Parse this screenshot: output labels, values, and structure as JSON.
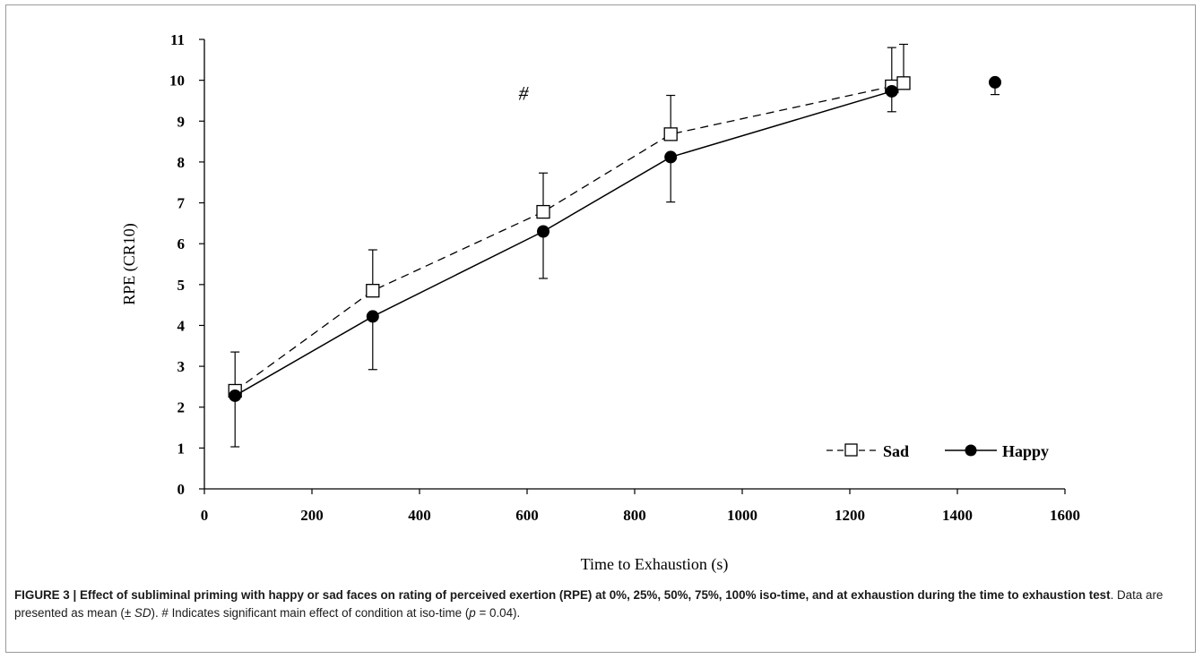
{
  "chart_data": {
    "type": "line",
    "xlabel": "Time to Exhaustion (s)",
    "ylabel": "RPE (CR10)",
    "xlim": [
      0,
      1600
    ],
    "ylim": [
      0,
      11
    ],
    "xticks": [
      "0",
      "200",
      "400",
      "600",
      "800",
      "1000",
      "1200",
      "1400",
      "1600"
    ],
    "yticks": [
      "0",
      "1",
      "2",
      "3",
      "4",
      "5",
      "6",
      "7",
      "8",
      "9",
      "10",
      "11"
    ],
    "grid": false,
    "legend_position": "bottom-right",
    "annotation": "#",
    "annotation_at": {
      "x": 630,
      "y": 9.7
    },
    "series": [
      {
        "name": "Sad",
        "style": "dashed",
        "marker": "open-square",
        "color": "#000000",
        "points": [
          {
            "x": 57,
            "y": 2.4,
            "sd": 0.95
          },
          {
            "x": 313,
            "y": 4.85,
            "sd": 1.0
          },
          {
            "x": 630,
            "y": 6.78,
            "sd": 0.95
          },
          {
            "x": 867,
            "y": 8.68,
            "sd": 0.95
          },
          {
            "x": 1278,
            "y": 9.85,
            "sd": 0.95
          },
          {
            "x": 1300,
            "y": 9.93,
            "sd": 0.95
          }
        ],
        "error_direction": "up"
      },
      {
        "name": "Happy",
        "style": "solid",
        "marker": "filled-circle",
        "color": "#000000",
        "points": [
          {
            "x": 57,
            "y": 2.28,
            "sd": 1.25
          },
          {
            "x": 313,
            "y": 4.22,
            "sd": 1.3
          },
          {
            "x": 630,
            "y": 6.3,
            "sd": 1.15
          },
          {
            "x": 867,
            "y": 8.12,
            "sd": 1.1
          },
          {
            "x": 1278,
            "y": 9.73,
            "sd": 0.5
          }
        ],
        "extra_point": {
          "x": 1470,
          "y": 9.95,
          "sd": 0.3
        },
        "error_direction": "down"
      }
    ]
  },
  "caption": {
    "bold": "FIGURE 3 | Effect of subliminal priming with happy or sad faces on rating of perceived exertion (RPE) at 0%, 25%, 50%, 75%, 100% iso-time, and at exhaustion during the time to exhaustion test",
    "text1": ". Data are presented as mean (± ",
    "sd": "SD",
    "text2": "). # Indicates significant main effect of condition at iso-time (",
    "p": "p",
    "text3": " = 0.04)."
  }
}
